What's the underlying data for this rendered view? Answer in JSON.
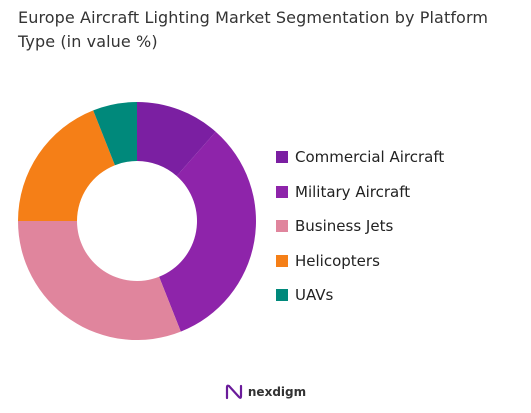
{
  "header": {
    "title": "Europe Aircraft Lighting Market Segmentation by Platform Type (in value %)"
  },
  "chart_data": {
    "type": "pie",
    "donut": true,
    "categories": [
      "Commercial Aircraft",
      "Military Aircraft",
      "Business Jets",
      "Helicopters",
      "UAVs"
    ],
    "values": [
      11.5,
      32.5,
      31.0,
      19.0,
      6.0
    ],
    "colors": [
      "#7b1fa2",
      "#8e24aa",
      "#e0859d",
      "#f57f17",
      "#00897b"
    ],
    "legend": "right"
  },
  "brand": {
    "name": "nexdigm",
    "icon": "nexdigm-logo-icon"
  }
}
